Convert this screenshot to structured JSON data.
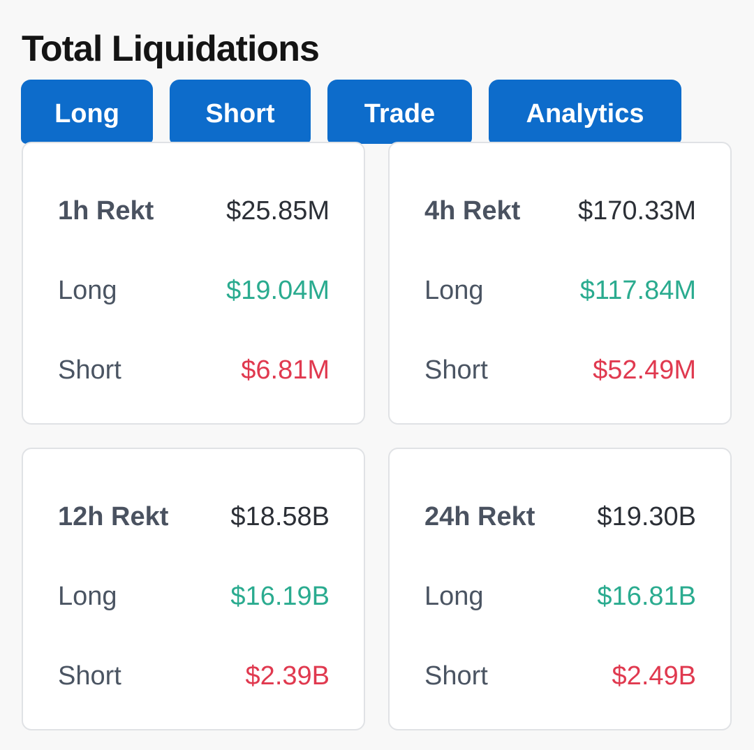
{
  "header": {
    "title": "Total Liquidations"
  },
  "tabs": [
    {
      "label": "Long"
    },
    {
      "label": "Short"
    },
    {
      "label": "Trade"
    },
    {
      "label": "Analytics"
    }
  ],
  "colors": {
    "tab_bg": "#0d6ccb",
    "long": "#2aab8f",
    "short": "#e0394f"
  },
  "cards": [
    {
      "period": "1h Rekt",
      "total": "$25.85M",
      "long_label": "Long",
      "long": "$19.04M",
      "short_label": "Short",
      "short": "$6.81M"
    },
    {
      "period": "4h Rekt",
      "total": "$170.33M",
      "long_label": "Long",
      "long": "$117.84M",
      "short_label": "Short",
      "short": "$52.49M"
    },
    {
      "period": "12h Rekt",
      "total": "$18.58B",
      "long_label": "Long",
      "long": "$16.19B",
      "short_label": "Short",
      "short": "$2.39B"
    },
    {
      "period": "24h Rekt",
      "total": "$19.30B",
      "long_label": "Long",
      "long": "$16.81B",
      "short_label": "Short",
      "short": "$2.49B"
    }
  ]
}
